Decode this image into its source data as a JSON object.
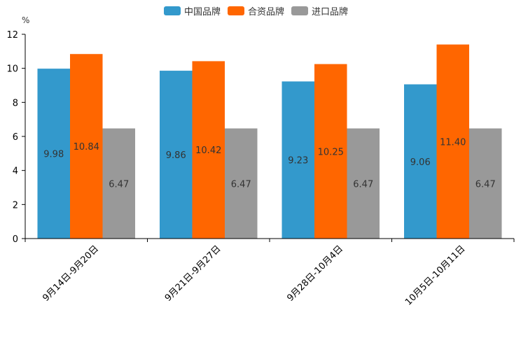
{
  "chart_data": {
    "type": "bar",
    "title": "",
    "ylabel": "%",
    "xlabel": "",
    "ylim": [
      0,
      12
    ],
    "yticks": [
      0,
      2,
      4,
      6,
      8,
      10,
      12
    ],
    "categories": [
      "9月14日-9月20日",
      "9月21日-9月27日",
      "9月28日-10月4日",
      "10月5日-10月11日"
    ],
    "series": [
      {
        "name": "中国品牌",
        "color": "#3399cc",
        "values": [
          9.98,
          9.86,
          9.23,
          9.06
        ],
        "labels": [
          "9.98",
          "9.86",
          "9.23",
          "9.06"
        ]
      },
      {
        "name": "合资品牌",
        "color": "#ff6600",
        "values": [
          10.84,
          10.42,
          10.25,
          11.4
        ],
        "labels": [
          "10.84",
          "10.42",
          "10.25",
          "11.40"
        ]
      },
      {
        "name": "进口品牌",
        "color": "#999999",
        "values": [
          6.47,
          6.47,
          6.47,
          6.47
        ],
        "labels": [
          "6.47",
          "6.47",
          "6.47",
          "6.47"
        ]
      }
    ],
    "grid": false,
    "legend_position": "top-center"
  }
}
